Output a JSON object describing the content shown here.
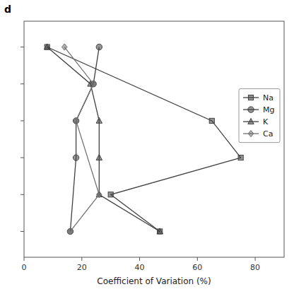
{
  "chart_data": {
    "type": "line",
    "xlabel": "Coefficient of Variation (%)",
    "annotations": [
      "d"
    ],
    "xlim": [
      0,
      90
    ],
    "xticks": [
      0,
      20,
      40,
      60,
      80
    ],
    "ylim": [
      6.7,
      0.3
    ],
    "yticks": [
      1,
      2,
      3,
      4,
      5,
      6
    ],
    "tick_labels": "x",
    "grid": false,
    "legend": "right",
    "series": [
      {
        "name": "Na",
        "color": "#404040",
        "marker": "square",
        "x": [
          8,
          65,
          75,
          30,
          47
        ],
        "values": [
          1,
          3,
          4,
          5,
          6
        ]
      },
      {
        "name": "Mg",
        "color": "#404040",
        "marker": "circle",
        "x": [
          26,
          24,
          18,
          18,
          16
        ],
        "values": [
          1,
          2,
          3,
          4,
          6
        ]
      },
      {
        "name": "K",
        "color": "#404040",
        "marker": "triangle",
        "x": [
          8,
          23,
          26,
          26,
          26,
          47
        ],
        "values": [
          1,
          2,
          3,
          4,
          5,
          6
        ]
      },
      {
        "name": "Ca",
        "color": "#707070",
        "marker": "diamond",
        "x": [
          14,
          24,
          18,
          26,
          16
        ],
        "values": [
          1,
          2,
          3,
          5,
          6
        ]
      }
    ]
  }
}
